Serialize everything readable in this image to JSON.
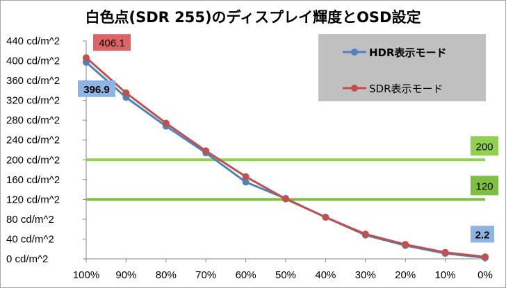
{
  "chart_data": {
    "type": "line",
    "title": "白色点(SDR 255)のディスプレイ輝度とOSD設定",
    "xlabel": "",
    "ylabel": "",
    "categories": [
      "100%",
      "90%",
      "80%",
      "70%",
      "60%",
      "50%",
      "40%",
      "30%",
      "20%",
      "10%",
      "0%"
    ],
    "y_tick_labels": [
      "0 cd/m^2",
      "40 cd/m^2",
      "80 cd/m^2",
      "120 cd/m^2",
      "160 cd/m^2",
      "200 cd/m^2",
      "240 cd/m^2",
      "280 cd/m^2",
      "320 cd/m^2",
      "360 cd/m^2",
      "400 cd/m^2",
      "440 cd/m^2"
    ],
    "ylim": [
      0,
      440
    ],
    "y_step": 40,
    "grid": false,
    "legend_position": "top-right",
    "series": [
      {
        "name": "HDR表示モード",
        "color": "#4f81bd",
        "values": [
          396.9,
          326,
          268,
          214,
          155,
          122,
          84,
          48,
          27,
          11,
          2.2
        ]
      },
      {
        "name": "SDR表示モード",
        "color": "#c0504d",
        "values": [
          406.1,
          335,
          274,
          218,
          166,
          121,
          84,
          50,
          29,
          13,
          4
        ]
      }
    ],
    "reference_lines": [
      {
        "value": 200,
        "label": "200",
        "color": "#92d050"
      },
      {
        "value": 120,
        "label": "120",
        "color": "#7fbf3f"
      }
    ],
    "annotations": [
      {
        "text": "406.1",
        "series": "SDR表示モード",
        "index": 0,
        "fill": "#dc6464"
      },
      {
        "text": "396.9",
        "series": "HDR表示モード",
        "index": 0,
        "fill": "#8db4e2",
        "bold": true
      },
      {
        "text": "2.2",
        "series": "HDR表示モード",
        "index": 10,
        "fill": "#8db4e2",
        "bold": true
      }
    ]
  }
}
